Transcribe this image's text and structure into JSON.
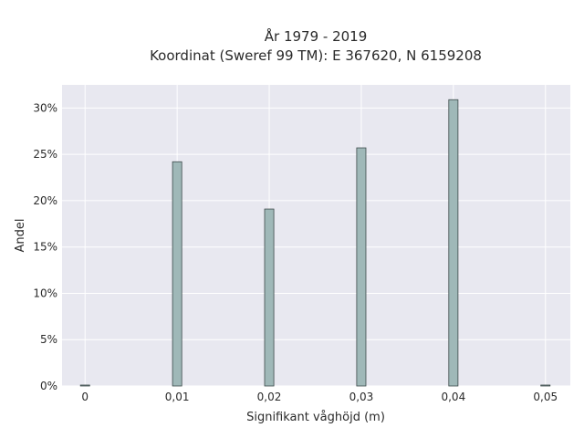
{
  "chart_data": {
    "type": "bar",
    "title_line1": "År 1979 - 2019",
    "title_line2": "Koordinat (Sweref 99 TM): E 367620, N 6159208",
    "xlabel": "Signifikant våghöjd (m)",
    "ylabel": "Andel",
    "x_ticks": [
      "0",
      "0,01",
      "0,02",
      "0,03",
      "0,04",
      "0,05"
    ],
    "x_tick_values": [
      0,
      0.01,
      0.02,
      0.03,
      0.04,
      0.05
    ],
    "y_ticks": [
      "0%",
      "5%",
      "10%",
      "15%",
      "20%",
      "25%",
      "30%"
    ],
    "y_tick_values": [
      0,
      5,
      10,
      15,
      20,
      25,
      30
    ],
    "xlim": [
      -0.0025,
      0.0527
    ],
    "ylim": [
      0,
      32.5
    ],
    "bar_width": 0.001,
    "x": [
      0,
      0.01,
      0.02,
      0.03,
      0.04,
      0.05
    ],
    "values": [
      0.1,
      24.2,
      19.1,
      25.7,
      30.9,
      0.1
    ],
    "grid": true,
    "colors": {
      "bar_fill": "#9fb8b8",
      "bar_stroke": "#3c4a4a",
      "plot_bg": "#e8e8f0",
      "grid": "#ffffff"
    }
  }
}
